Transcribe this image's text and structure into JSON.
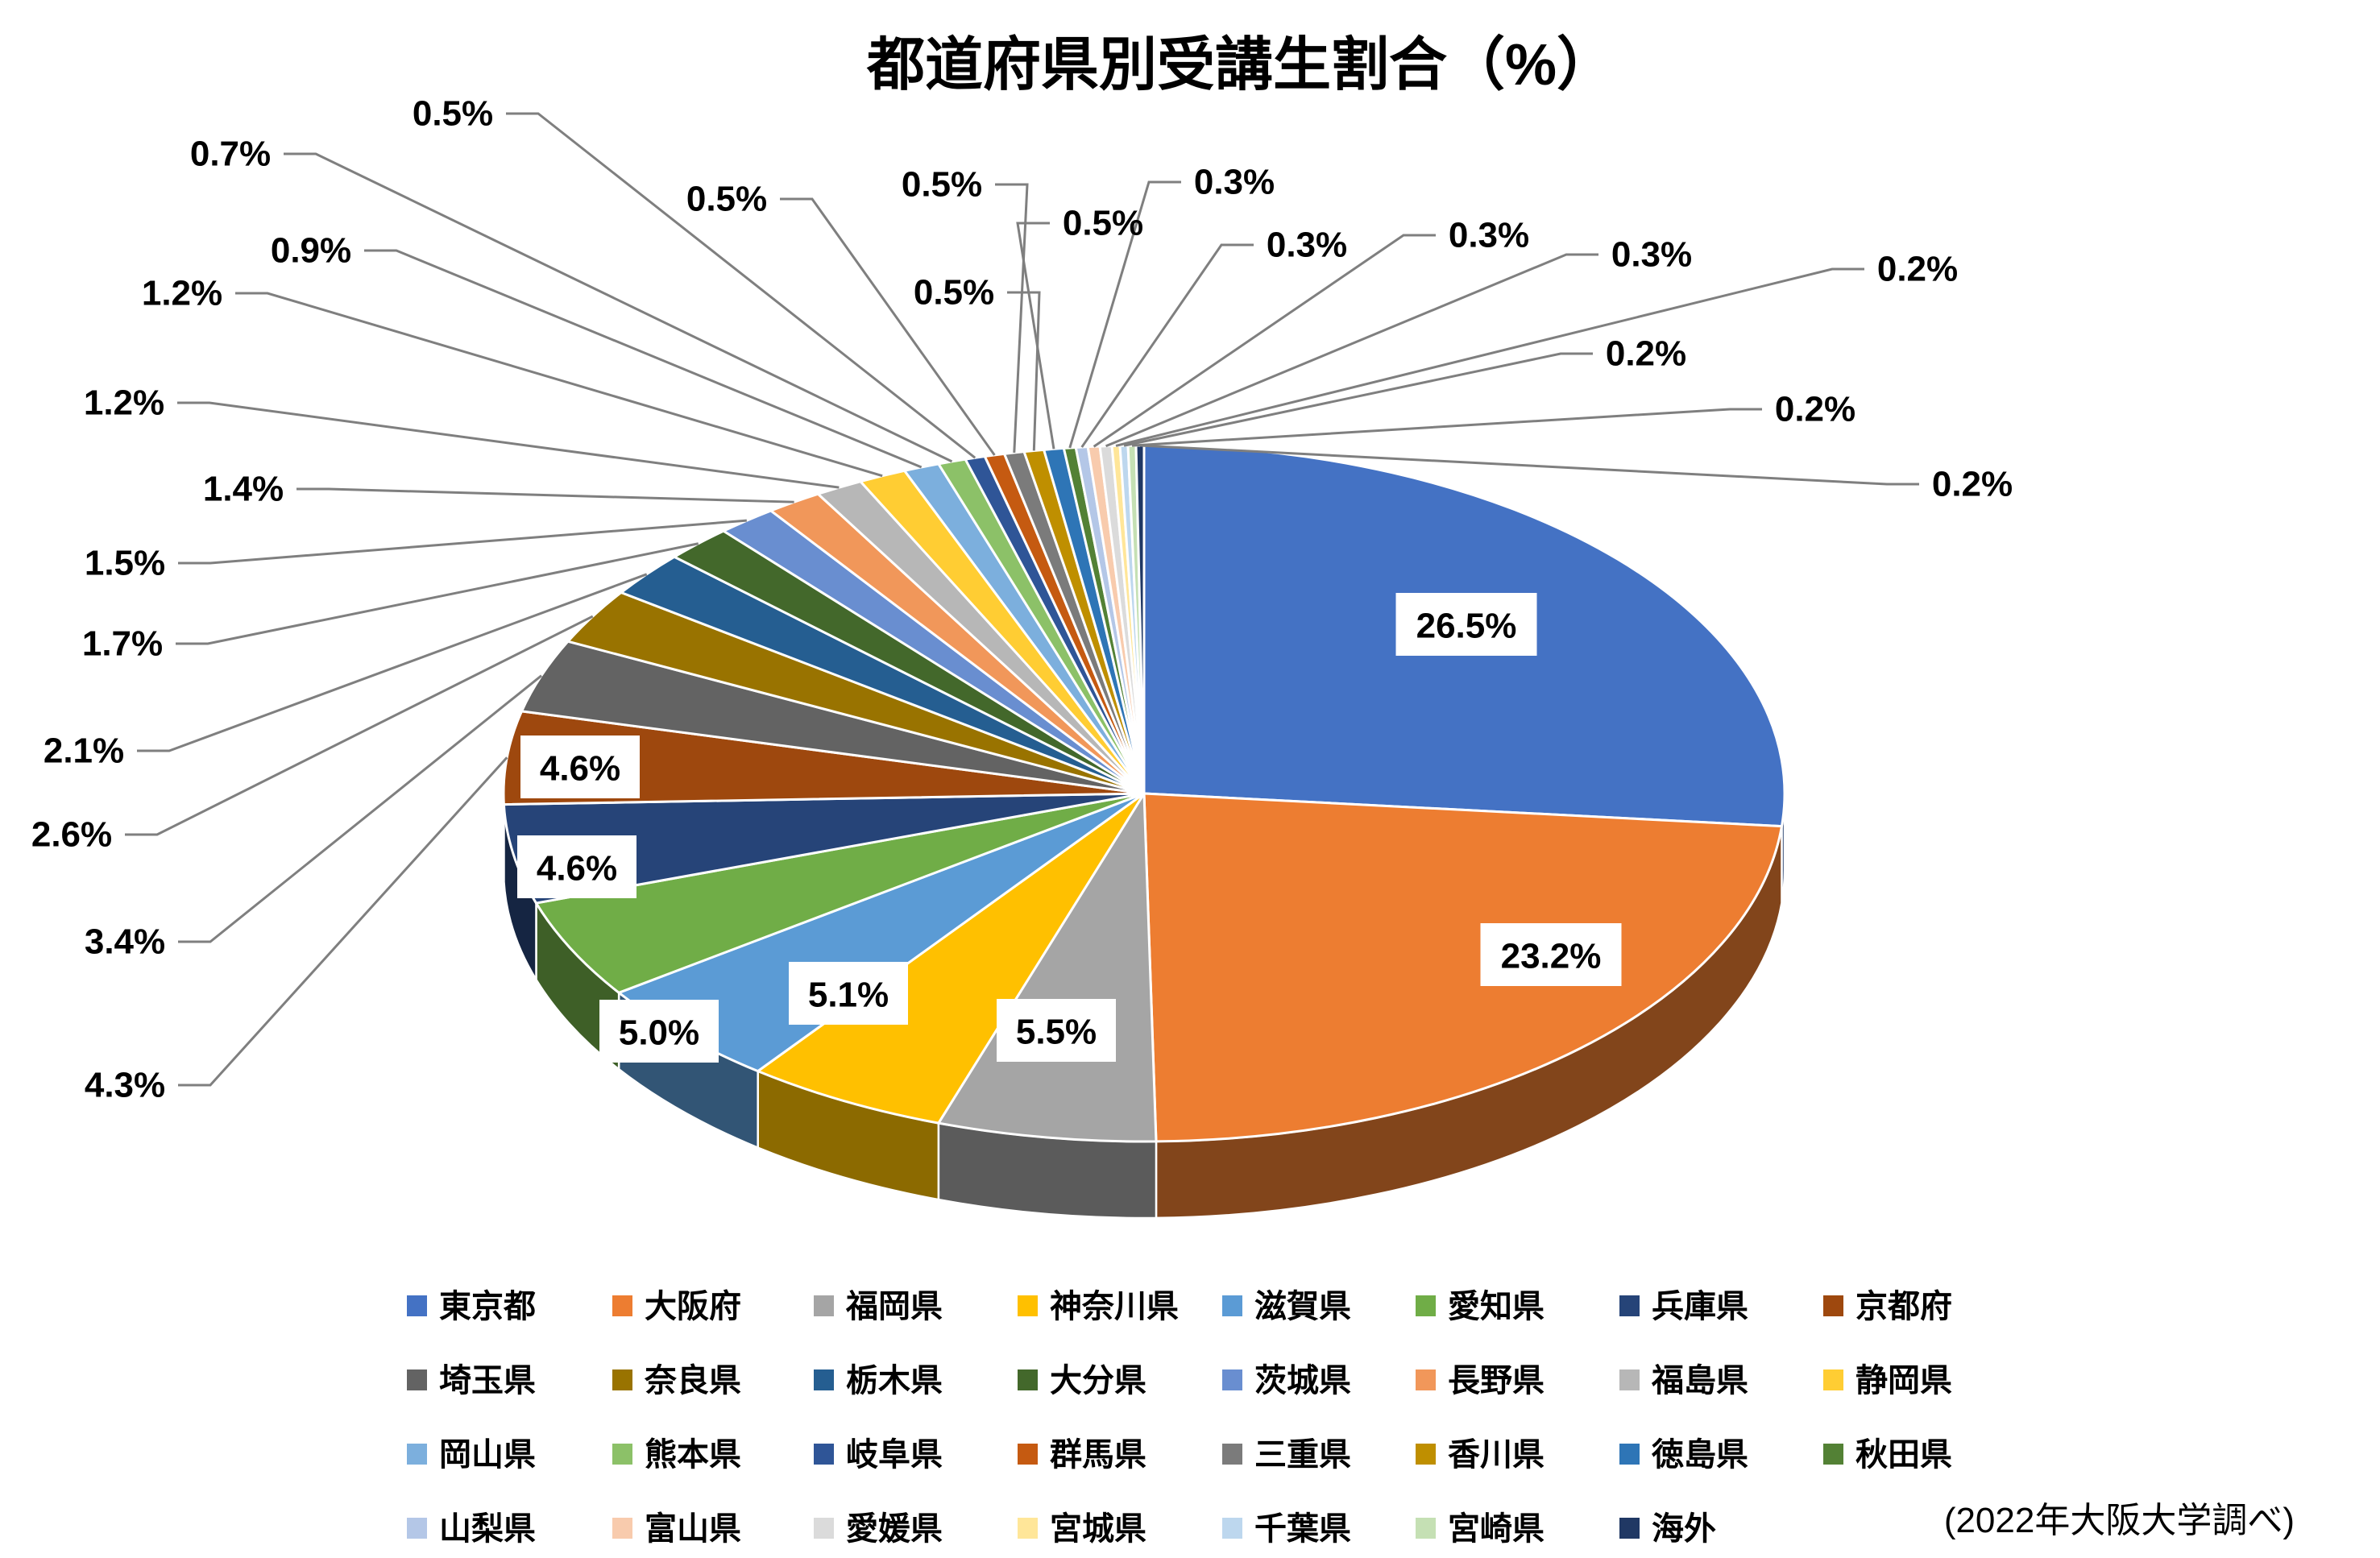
{
  "title": "都道府県別受講生割合（%）",
  "source_note": "(2022年大阪大学調べ)",
  "chart_data": {
    "type": "pie",
    "is_3d": true,
    "title": "都道府県別受講生割合（%）",
    "legend_position": "bottom",
    "start_angle_deg": 0,
    "direction": "clockwise",
    "categories": [
      "東京都",
      "大阪府",
      "福岡県",
      "神奈川県",
      "滋賀県",
      "愛知県",
      "兵庫県",
      "京都府",
      "埼玉県",
      "奈良県",
      "栃木県",
      "大分県",
      "茨城県",
      "長野県",
      "福島県",
      "静岡県",
      "岡山県",
      "熊本県",
      "岐阜県",
      "群馬県",
      "三重県",
      "香川県",
      "徳島県",
      "秋田県",
      "山梨県",
      "富山県",
      "愛媛県",
      "宮城県",
      "千葉県",
      "宮崎県",
      "海外"
    ],
    "values": [
      26.5,
      23.2,
      5.5,
      5.1,
      5.0,
      4.6,
      4.6,
      4.3,
      3.4,
      2.6,
      2.1,
      1.7,
      1.5,
      1.4,
      1.2,
      1.2,
      0.9,
      0.7,
      0.5,
      0.5,
      0.5,
      0.5,
      0.5,
      0.3,
      0.3,
      0.3,
      0.3,
      0.2,
      0.2,
      0.2,
      0.2
    ],
    "colors": [
      "#4472C4",
      "#ED7D31",
      "#A5A5A5",
      "#FFC000",
      "#5B9BD5",
      "#70AD47",
      "#264478",
      "#9E480E",
      "#636363",
      "#997300",
      "#255E91",
      "#43682B",
      "#698ED0",
      "#F1975A",
      "#B7B7B7",
      "#FFCD33",
      "#7CAFDD",
      "#8CC168",
      "#2F5597",
      "#C55A11",
      "#7B7B7B",
      "#BF8F00",
      "#2E75B6",
      "#538135",
      "#B4C7E7",
      "#F8CBAD",
      "#DBDBDB",
      "#FFE699",
      "#BDD7EE",
      "#C5E0B4",
      "#203864"
    ],
    "leader_line_color": "#7F7F7F",
    "label_suffix": "%"
  }
}
